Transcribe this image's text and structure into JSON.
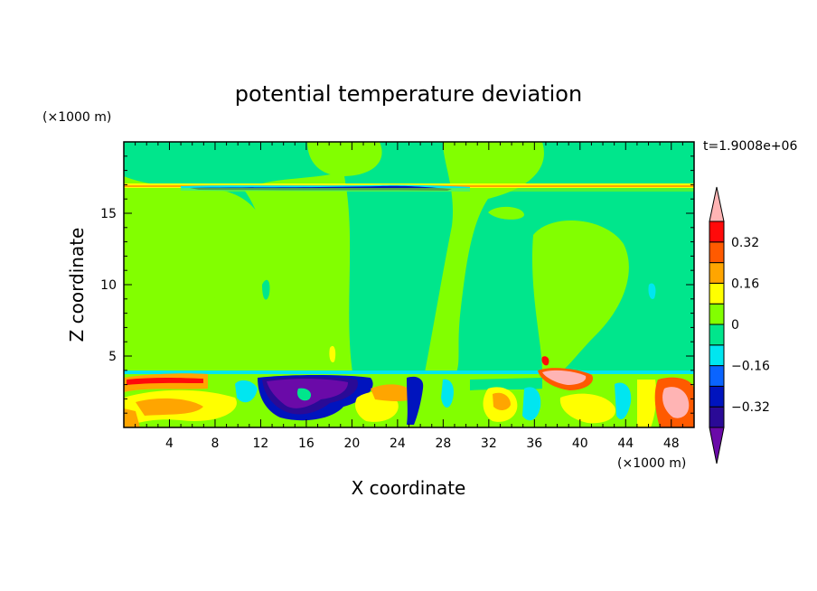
{
  "chart_data": {
    "type": "heatmap",
    "title": "potential temperature deviation",
    "xlabel": "X coordinate",
    "ylabel": "Z coordinate",
    "x_unit": "(×1000 m)",
    "y_unit": "(×1000 m)",
    "time_label": "t=1.9008e+06",
    "xlim": [
      0,
      50
    ],
    "ylim": [
      0,
      20
    ],
    "x_ticks": [
      4,
      8,
      12,
      16,
      20,
      24,
      28,
      32,
      36,
      40,
      44,
      48
    ],
    "y_ticks": [
      5,
      10,
      15
    ],
    "colorbar": {
      "levels": [
        -0.4,
        -0.32,
        -0.24,
        -0.16,
        -0.08,
        0,
        0.08,
        0.16,
        0.24,
        0.32,
        0.4
      ],
      "colors": [
        "#6a0aa8",
        "#2a0a96",
        "#0014be",
        "#0a64ff",
        "#00e6f0",
        "#00e68c",
        "#82ff00",
        "#ffff00",
        "#ffa500",
        "#ff5a00",
        "#ff0a0a",
        "#ffb4b4"
      ],
      "labels": [
        "0.32",
        "0.16",
        "0",
        "−0.16",
        "−0.32"
      ],
      "label_values": [
        0.32,
        0.16,
        0,
        -0.16,
        -0.32
      ]
    }
  }
}
